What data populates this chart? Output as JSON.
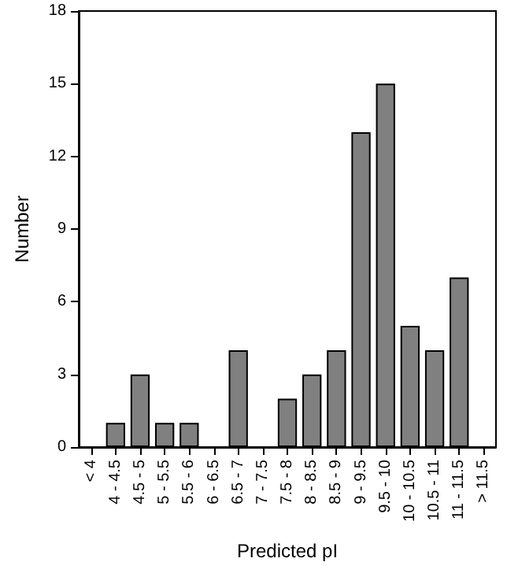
{
  "chart_data": {
    "type": "bar",
    "xlabel": "Predicted pI",
    "ylabel": "Number",
    "categories": [
      "< 4",
      "4 - 4.5",
      "4.5 - 5",
      "5 - 5.5",
      "5.5 - 6",
      "6 - 6.5",
      "6.5 - 7",
      "7 - 7.5",
      "7.5 - 8",
      "8 - 8.5",
      "8.5 - 9",
      "9 - 9.5",
      "9.5 - 10",
      "10 - 10.5",
      "10.5 - 11",
      "11 - 11.5",
      "> 11.5"
    ],
    "values": [
      0,
      1,
      3,
      1,
      1,
      0,
      4,
      0,
      2,
      3,
      4,
      13,
      15,
      5,
      4,
      7,
      0
    ],
    "color": "#808080",
    "ylim": [
      0,
      18
    ],
    "yticks": [
      0,
      3,
      6,
      9,
      12,
      15,
      18
    ]
  }
}
